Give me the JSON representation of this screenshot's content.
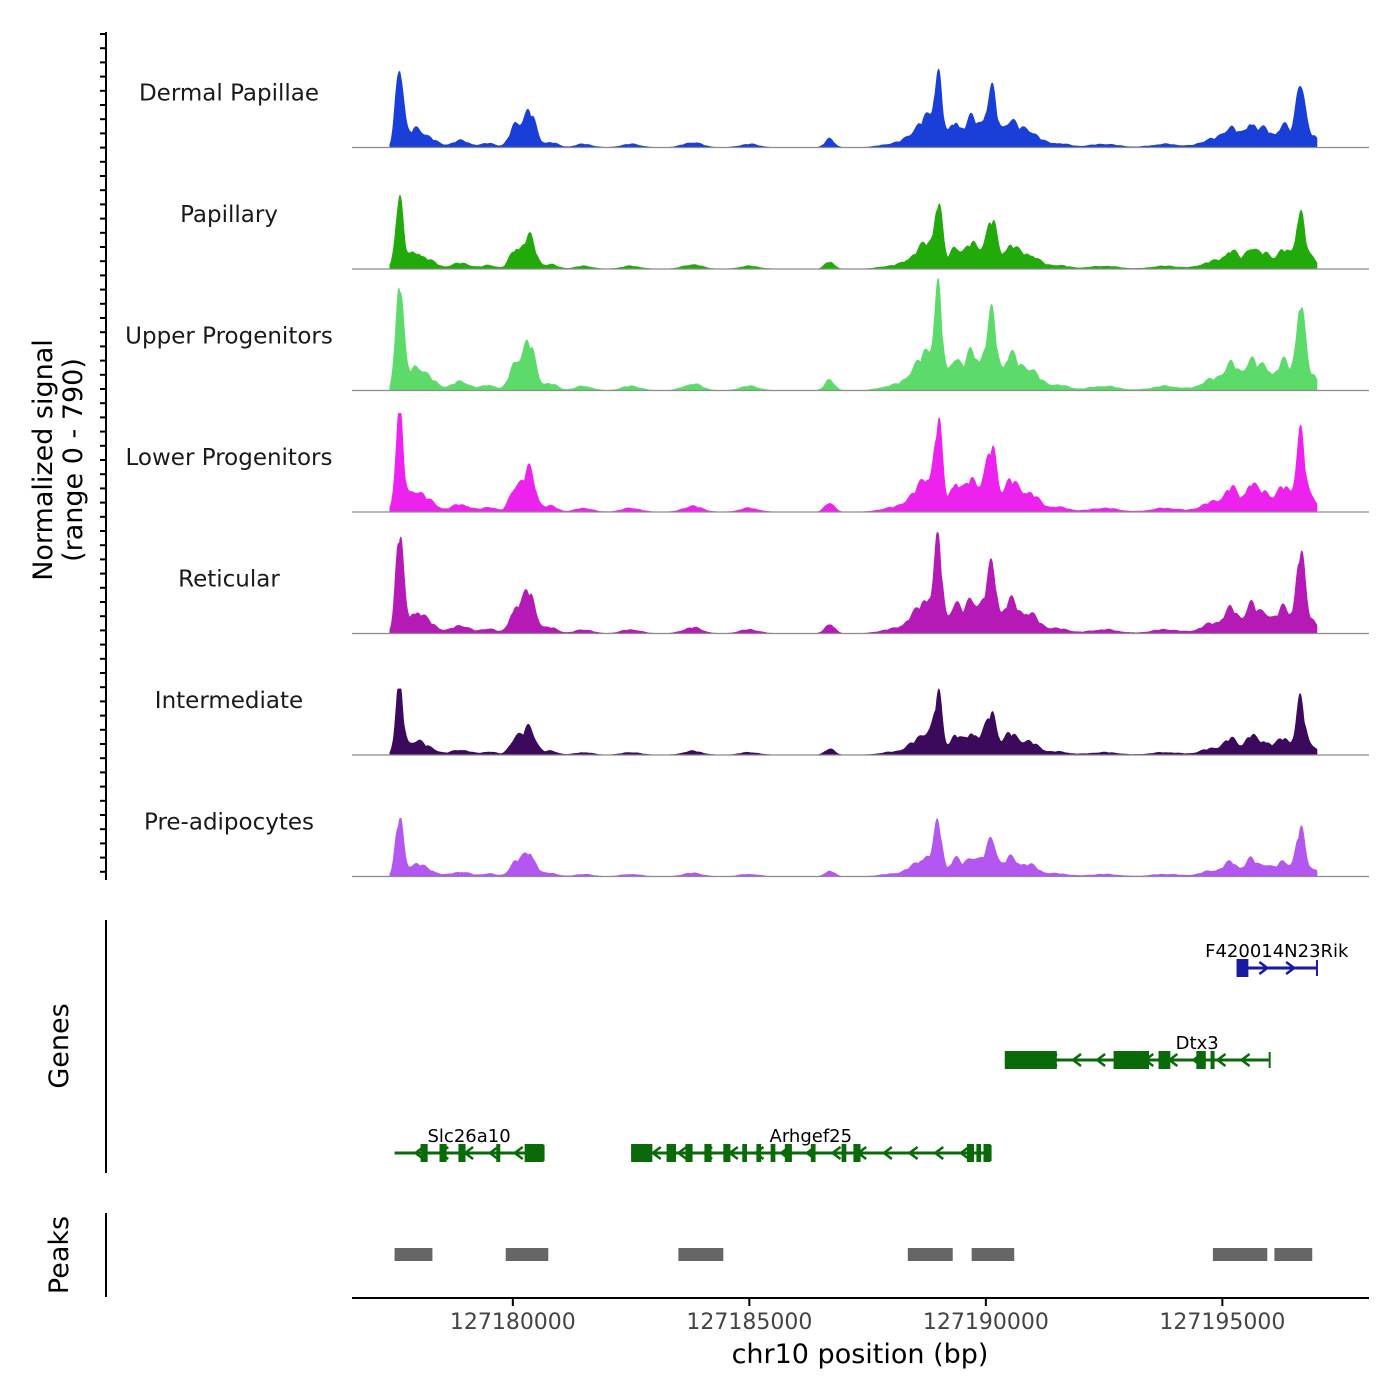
{
  "chart_data": {
    "type": "area",
    "title": "",
    "chromosome": "chr10",
    "xlabel": "chr10 position (bp)",
    "ylabel_line1": "Normalized signal",
    "ylabel_line2": "(range 0 - 790)",
    "signal_range": [
      0,
      790
    ],
    "xlim": [
      127176600,
      127198100
    ],
    "x_ticks": [
      127180000,
      127185000,
      127190000,
      127195000
    ],
    "x_tick_labels": [
      "127180000",
      "127185000",
      "127190000",
      "127195000"
    ],
    "tracks": [
      {
        "name": "Dermal Papillae",
        "color": "#1a3fd8",
        "scale": 0.77
      },
      {
        "name": "Papillary",
        "color": "#22aa0a",
        "scale": 0.67
      },
      {
        "name": "Upper Progenitors",
        "color": "#5cdb6a",
        "scale": 1.0
      },
      {
        "name": "Lower Progenitors",
        "color": "#ee22ee",
        "scale": 0.88
      },
      {
        "name": "Reticular",
        "color": "#b61ab6",
        "scale": 0.9
      },
      {
        "name": "Intermediate",
        "color": "#3b0a5c",
        "scale": 0.59
      },
      {
        "name": "Pre-adipocytes",
        "color": "#b456f0",
        "scale": 0.52
      }
    ],
    "signal_peaks": [
      [
        127177600,
        1.0,
        80
      ],
      [
        127177950,
        0.22,
        180
      ],
      [
        127178300,
        0.07,
        150
      ],
      [
        127178900,
        0.08,
        200
      ],
      [
        127179500,
        0.05,
        150
      ],
      [
        127180050,
        0.25,
        120
      ],
      [
        127180350,
        0.42,
        130
      ],
      [
        127180800,
        0.06,
        150
      ],
      [
        127181500,
        0.04,
        180
      ],
      [
        127182500,
        0.04,
        200
      ],
      [
        127183800,
        0.06,
        200
      ],
      [
        127185000,
        0.04,
        200
      ],
      [
        127186700,
        0.1,
        100
      ],
      [
        127188000,
        0.04,
        250
      ],
      [
        127188500,
        0.16,
        200
      ],
      [
        127188800,
        0.3,
        160
      ],
      [
        127189000,
        0.78,
        80
      ],
      [
        127189350,
        0.3,
        120
      ],
      [
        127189700,
        0.34,
        130
      ],
      [
        127190000,
        0.3,
        110
      ],
      [
        127190150,
        0.52,
        90
      ],
      [
        127190500,
        0.3,
        150
      ],
      [
        127190900,
        0.2,
        200
      ],
      [
        127191500,
        0.05,
        250
      ],
      [
        127192500,
        0.04,
        300
      ],
      [
        127193800,
        0.04,
        300
      ],
      [
        127194800,
        0.1,
        250
      ],
      [
        127195200,
        0.22,
        150
      ],
      [
        127195600,
        0.28,
        120
      ],
      [
        127195900,
        0.2,
        130
      ],
      [
        127196300,
        0.26,
        150
      ],
      [
        127196650,
        0.8,
        90
      ],
      [
        127196900,
        0.14,
        120
      ]
    ],
    "genes": [
      {
        "name": "F420014N23Rik",
        "strand": "+",
        "color": "#1a1aa0",
        "row": 0,
        "start": 127195300,
        "end": 127197000,
        "exons": [
          [
            127195300,
            127195550
          ]
        ]
      },
      {
        "name": "Dtx3",
        "strand": "-",
        "color": "#0a6a0a",
        "row": 1,
        "start": 127190400,
        "end": 127196000,
        "exons": [
          [
            127190400,
            127191500
          ],
          [
            127192700,
            127193450
          ],
          [
            127193650,
            127193900
          ],
          [
            127194450,
            127194650
          ],
          [
            127194750,
            127194800
          ]
        ]
      },
      {
        "name": "Slc26a10",
        "strand": "-",
        "color": "#0a6a0a",
        "row": 2,
        "start": 127177500,
        "end": 127180650,
        "exons": [
          [
            127178050,
            127178200
          ],
          [
            127178450,
            127178600
          ],
          [
            127178850,
            127179000
          ],
          [
            127179650,
            127179700
          ],
          [
            127180250,
            127180650
          ]
        ]
      },
      {
        "name": "Arhgef25",
        "strand": "-",
        "color": "#0a6a0a",
        "row": 2,
        "start": 127182500,
        "end": 127190100,
        "exons": [
          [
            127182500,
            127182950
          ],
          [
            127183250,
            127183450
          ],
          [
            127183650,
            127183800
          ],
          [
            127184050,
            127184200
          ],
          [
            127184450,
            127184600
          ],
          [
            127184850,
            127184950
          ],
          [
            127185150,
            127185250
          ],
          [
            127185450,
            127185550
          ],
          [
            127185750,
            127185900
          ],
          [
            127186300,
            127186400
          ],
          [
            127186950,
            127187050
          ],
          [
            127187200,
            127187350
          ],
          [
            127189600,
            127189750
          ],
          [
            127189800,
            127189900
          ],
          [
            127189950,
            127190100
          ]
        ]
      }
    ],
    "peaks": [
      [
        127177500,
        127178300
      ],
      [
        127179850,
        127180750
      ],
      [
        127183500,
        127184450
      ],
      [
        127188350,
        127189300
      ],
      [
        127189700,
        127190600
      ],
      [
        127194800,
        127195950
      ],
      [
        127196100,
        127196900
      ]
    ],
    "panel_labels": {
      "genes": "Genes",
      "peaks": "Peaks"
    }
  }
}
